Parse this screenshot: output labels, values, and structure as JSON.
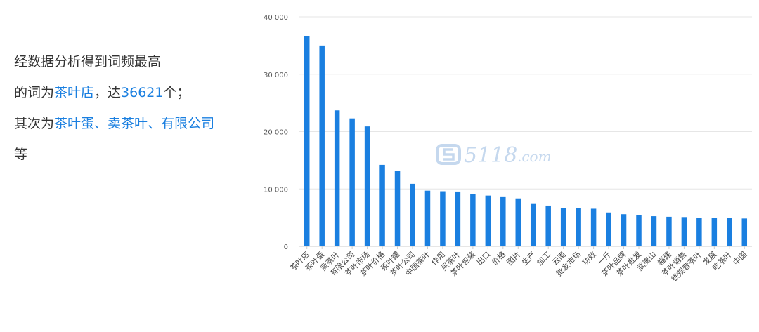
{
  "summary": {
    "line1": "经数据分析得到词频最高",
    "line2_prefix": "的词为",
    "top_word": "茶叶店",
    "line2_mid": "，达",
    "top_count": "36621",
    "line2_suffix": "个；",
    "line3_prefix": "其次为",
    "second_word": "茶叶蛋",
    "sep1": "、",
    "third_word": "卖茶叶",
    "sep2": "、",
    "fourth_word": "有限公司",
    "line4": "等"
  },
  "watermark": {
    "text": "5118",
    "suffix": ".com"
  },
  "colors": {
    "bar": "#1a7fe0",
    "highlight": "#1a7fe0",
    "grid": "#e6e6e6",
    "watermark": "#c5d8ee"
  },
  "chart_data": {
    "type": "bar",
    "categories": [
      "茶叶店",
      "茶叶蛋",
      "卖茶叶",
      "有限公司",
      "茶叶市场",
      "茶叶价格",
      "茶叶罐",
      "茶叶公司",
      "中国茶叶",
      "作用",
      "买茶叶",
      "茶叶包装",
      "出口",
      "价格",
      "图片",
      "生产",
      "加工",
      "云南",
      "批发市场",
      "功效",
      "一斤",
      "茶叶品牌",
      "茶叶批发",
      "武夷山",
      "福建",
      "茶叶销售",
      "铁观音茶叶",
      "发展",
      "吃茶叶",
      "中国"
    ],
    "values": [
      36621,
      35000,
      23700,
      22300,
      20900,
      14200,
      13100,
      10900,
      9700,
      9600,
      9550,
      9100,
      8850,
      8700,
      8350,
      7500,
      7100,
      6700,
      6700,
      6550,
      5900,
      5600,
      5450,
      5250,
      5150,
      5100,
      5000,
      4950,
      4900,
      4850
    ],
    "yticks": [
      "0",
      "10 000",
      "20 000",
      "30 000",
      "40 000"
    ],
    "ylim": [
      0,
      40000
    ],
    "grid": true,
    "legend": "none"
  }
}
